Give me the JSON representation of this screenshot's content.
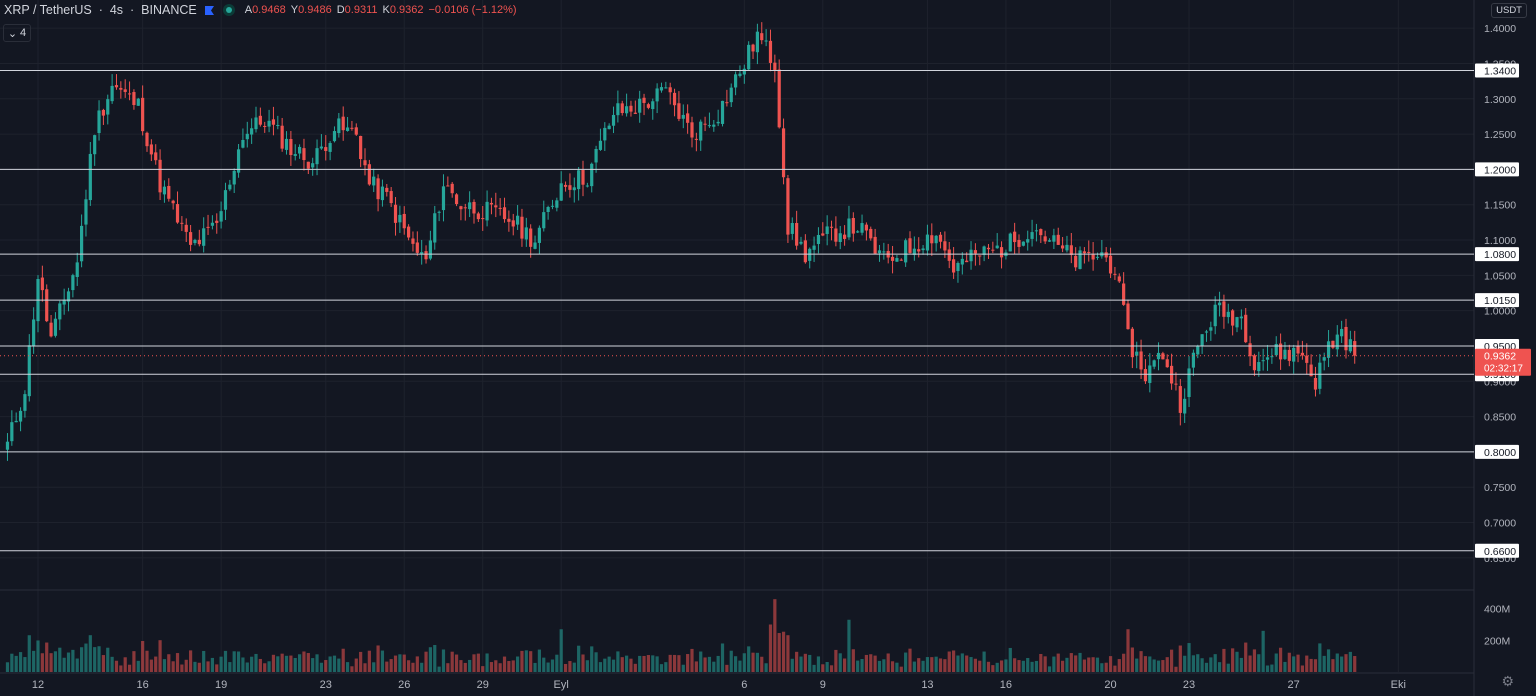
{
  "legend": {
    "symbol": "XRP / TetherUS",
    "interval": "4s",
    "exchange": "BINANCE",
    "open_label": "A",
    "open": "0.9468",
    "high_label": "Y",
    "high": "0.9486",
    "low_label": "D",
    "low": "0.9311",
    "close_label": "K",
    "close": "0.9362",
    "change": "−0.0106 (−1.12%)",
    "indicator_count": "4"
  },
  "currency": "USDT",
  "colors": {
    "background": "#131722",
    "up": "#26a69a",
    "down": "#ef5350",
    "text": "#d1d4dc",
    "grid": "#1e222d",
    "hline": "#d1d4dc"
  },
  "chart_data": {
    "type": "candlestick",
    "y_axis": {
      "min": 0.63,
      "max": 1.42,
      "ticks": [
        "1.4000",
        "1.3500",
        "1.3000",
        "1.2500",
        "1.2000",
        "1.1500",
        "1.1000",
        "1.0500",
        "1.0000",
        "0.9500",
        "0.9000",
        "0.8500",
        "0.8000",
        "0.7500",
        "0.7000",
        "0.6500"
      ]
    },
    "horizontal_levels": [
      "1.3400",
      "1.2000",
      "1.0800",
      "1.0150",
      "0.9500",
      "0.9100",
      "0.8000",
      "0.6600"
    ],
    "last_price": {
      "value": "0.9362",
      "countdown": "02:32:17"
    },
    "x_ticks": [
      {
        "label": "12",
        "bar": 0
      },
      {
        "label": "16",
        "bar": 24
      },
      {
        "label": "19",
        "bar": 42
      },
      {
        "label": "23",
        "bar": 66
      },
      {
        "label": "26",
        "bar": 84
      },
      {
        "label": "29",
        "bar": 102
      },
      {
        "label": "Eyl",
        "bar": 120
      },
      {
        "label": "6",
        "bar": 162
      },
      {
        "label": "9",
        "bar": 180
      },
      {
        "label": "13",
        "bar": 204
      },
      {
        "label": "16",
        "bar": 222
      },
      {
        "label": "20",
        "bar": 246
      },
      {
        "label": "23",
        "bar": 264
      },
      {
        "label": "27",
        "bar": 288
      },
      {
        "label": "Eki",
        "bar": 312
      }
    ],
    "volume_axis": {
      "max_m": 480,
      "ticks": [
        "400M",
        "200M"
      ]
    },
    "key_points": [
      {
        "bar": -7,
        "price": 0.81
      },
      {
        "bar": -3,
        "price": 0.89
      },
      {
        "bar": 0,
        "price": 1.05
      },
      {
        "bar": 3,
        "price": 0.96
      },
      {
        "bar": 9,
        "price": 1.07
      },
      {
        "bar": 13,
        "price": 1.26
      },
      {
        "bar": 17,
        "price": 1.32
      },
      {
        "bar": 23,
        "price": 1.29
      },
      {
        "bar": 28,
        "price": 1.18
      },
      {
        "bar": 35,
        "price": 1.09
      },
      {
        "bar": 41,
        "price": 1.12
      },
      {
        "bar": 47,
        "price": 1.25
      },
      {
        "bar": 52,
        "price": 1.27
      },
      {
        "bar": 58,
        "price": 1.23
      },
      {
        "bar": 63,
        "price": 1.21
      },
      {
        "bar": 68,
        "price": 1.26
      },
      {
        "bar": 73,
        "price": 1.25
      },
      {
        "bar": 76,
        "price": 1.18
      },
      {
        "bar": 80,
        "price": 1.16
      },
      {
        "bar": 86,
        "price": 1.09
      },
      {
        "bar": 89,
        "price": 1.07
      },
      {
        "bar": 93,
        "price": 1.18
      },
      {
        "bar": 97,
        "price": 1.15
      },
      {
        "bar": 103,
        "price": 1.14
      },
      {
        "bar": 108,
        "price": 1.13
      },
      {
        "bar": 114,
        "price": 1.1
      },
      {
        "bar": 120,
        "price": 1.18
      },
      {
        "bar": 126,
        "price": 1.19
      },
      {
        "bar": 132,
        "price": 1.28
      },
      {
        "bar": 138,
        "price": 1.29
      },
      {
        "bar": 144,
        "price": 1.31
      },
      {
        "bar": 150,
        "price": 1.25
      },
      {
        "bar": 156,
        "price": 1.28
      },
      {
        "bar": 162,
        "price": 1.35
      },
      {
        "bar": 165,
        "price": 1.39
      },
      {
        "bar": 169,
        "price": 1.35
      },
      {
        "bar": 172,
        "price": 1.12
      },
      {
        "bar": 176,
        "price": 1.08
      },
      {
        "bar": 182,
        "price": 1.11
      },
      {
        "bar": 188,
        "price": 1.12
      },
      {
        "bar": 194,
        "price": 1.07
      },
      {
        "bar": 200,
        "price": 1.09
      },
      {
        "bar": 206,
        "price": 1.11
      },
      {
        "bar": 210,
        "price": 1.06
      },
      {
        "bar": 216,
        "price": 1.08
      },
      {
        "bar": 222,
        "price": 1.09
      },
      {
        "bar": 228,
        "price": 1.12
      },
      {
        "bar": 232,
        "price": 1.1
      },
      {
        "bar": 238,
        "price": 1.07
      },
      {
        "bar": 244,
        "price": 1.08
      },
      {
        "bar": 247,
        "price": 1.06
      },
      {
        "bar": 250,
        "price": 0.96
      },
      {
        "bar": 254,
        "price": 0.91
      },
      {
        "bar": 258,
        "price": 0.94
      },
      {
        "bar": 262,
        "price": 0.87
      },
      {
        "bar": 266,
        "price": 0.95
      },
      {
        "bar": 270,
        "price": 1.0
      },
      {
        "bar": 276,
        "price": 0.99
      },
      {
        "bar": 279,
        "price": 0.93
      },
      {
        "bar": 284,
        "price": 0.94
      },
      {
        "bar": 290,
        "price": 0.94
      },
      {
        "bar": 293,
        "price": 0.9
      },
      {
        "bar": 296,
        "price": 0.95
      },
      {
        "bar": 299,
        "price": 0.97
      },
      {
        "bar": 302,
        "price": 0.9362
      }
    ],
    "last_bar": 302
  }
}
